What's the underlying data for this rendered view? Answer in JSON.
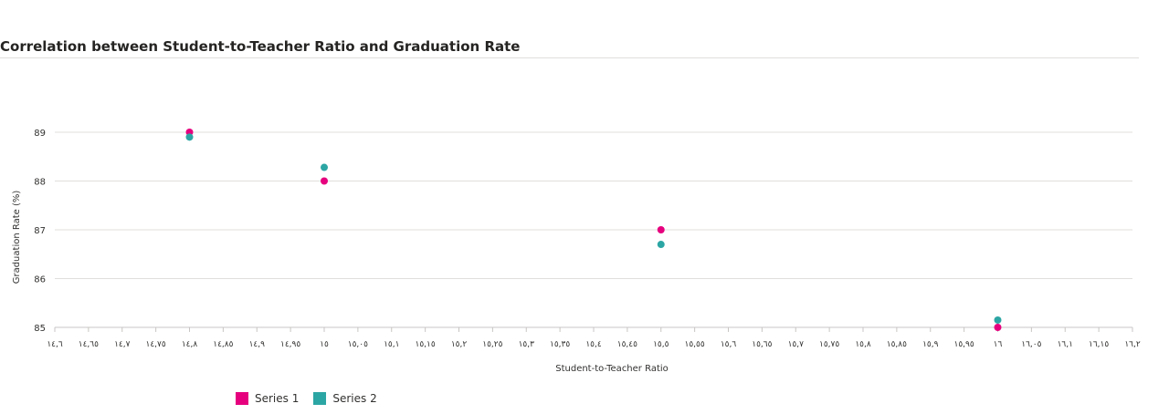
{
  "chart_data": {
    "type": "scatter",
    "title": "Correlation between Student-to-Teacher Ratio and Graduation Rate",
    "xlabel": "Student-to-Teacher Ratio",
    "ylabel": "Graduation Rate (%)",
    "xlim": [
      14.6,
      16.2
    ],
    "ylim": [
      85,
      89
    ],
    "x_ticks": [
      14.6,
      14.65,
      14.7,
      14.75,
      14.8,
      14.85,
      14.9,
      14.95,
      15,
      15.05,
      15.1,
      15.15,
      15.2,
      15.25,
      15.3,
      15.35,
      15.4,
      15.45,
      15.5,
      15.55,
      15.6,
      15.65,
      15.7,
      15.75,
      15.8,
      15.85,
      15.9,
      15.95,
      16,
      16.05,
      16.1,
      16.15,
      16.2
    ],
    "x_tick_labels": [
      "١٤,٦",
      "١٤,٦٥",
      "١٤,٧",
      "١٤,٧٥",
      "١٤,٨",
      "١٤,٨٥",
      "١٤,٩",
      "١٤,٩٥",
      "١٥",
      "١٥,٠٥",
      "١٥,١",
      "١٥,١٥",
      "١٥,٢",
      "١٥,٢٥",
      "١٥,٣",
      "١٥,٣٥",
      "١٥,٤",
      "١٥,٤٥",
      "١٥,٥",
      "١٥,٥٥",
      "١٥,٦",
      "١٥,٦٥",
      "١٥,٧",
      "١٥,٧٥",
      "١٥,٨",
      "١٥,٨٥",
      "١٥,٩",
      "١٥,٩٥",
      "١٦",
      "١٦,٠٥",
      "١٦,١",
      "١٦,١٥",
      "١٦,٢"
    ],
    "y_ticks": [
      85,
      86,
      87,
      88,
      89
    ],
    "y_tick_labels": [
      "85",
      "86",
      "87",
      "88",
      "89"
    ],
    "grid": true,
    "legend_position": "bottom-left",
    "series": [
      {
        "name": "Series 1",
        "color": "#e6007e",
        "points": [
          {
            "x": 14.8,
            "y": 89
          },
          {
            "x": 15,
            "y": 88
          },
          {
            "x": 15.5,
            "y": 87
          },
          {
            "x": 16,
            "y": 85
          }
        ]
      },
      {
        "name": "Series 2",
        "color": "#2ca6a4",
        "points": [
          {
            "x": 14.8,
            "y": 88.9
          },
          {
            "x": 15,
            "y": 88.28
          },
          {
            "x": 15.5,
            "y": 86.7
          },
          {
            "x": 16,
            "y": 85.15
          }
        ]
      }
    ]
  }
}
